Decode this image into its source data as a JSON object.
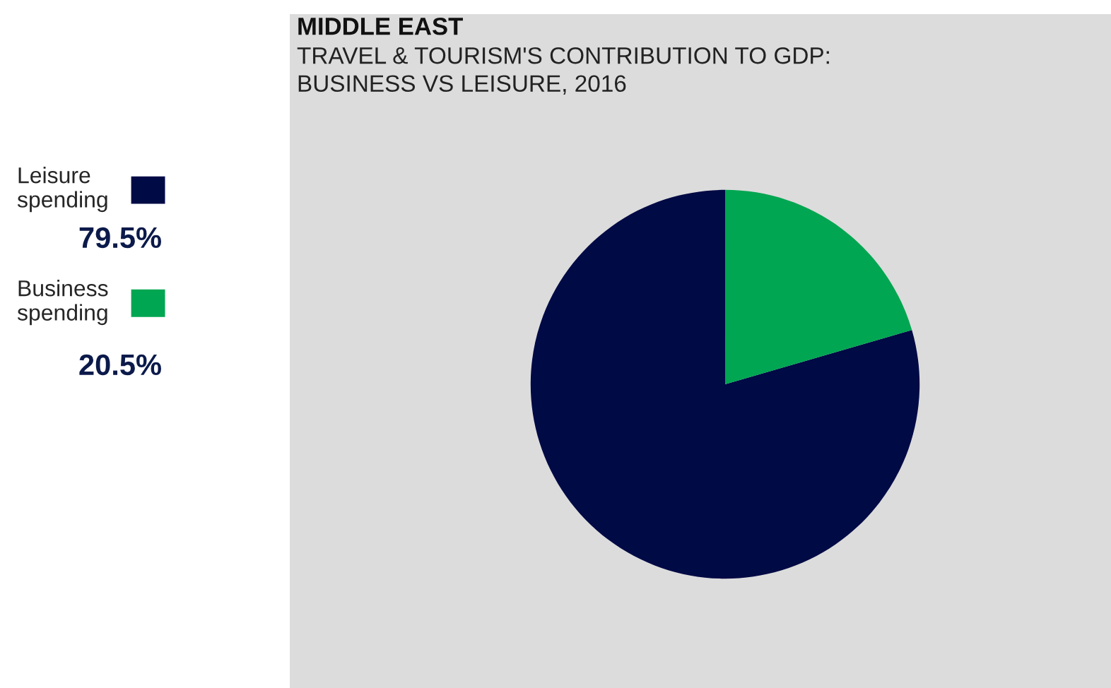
{
  "chart_data": {
    "type": "pie",
    "title": "MIDDLE EAST",
    "subtitle": "TRAVEL & TOURISM'S CONTRIBUTION TO GDP:\nBUSINESS VS LEISURE, 2016",
    "categories": [
      "Leisure spending",
      "Business spending"
    ],
    "values": [
      79.5,
      20.5
    ],
    "colors": [
      "#000a45",
      "#00a651"
    ],
    "value_labels": [
      "79.5%",
      "20.5%"
    ],
    "legend": "left"
  }
}
